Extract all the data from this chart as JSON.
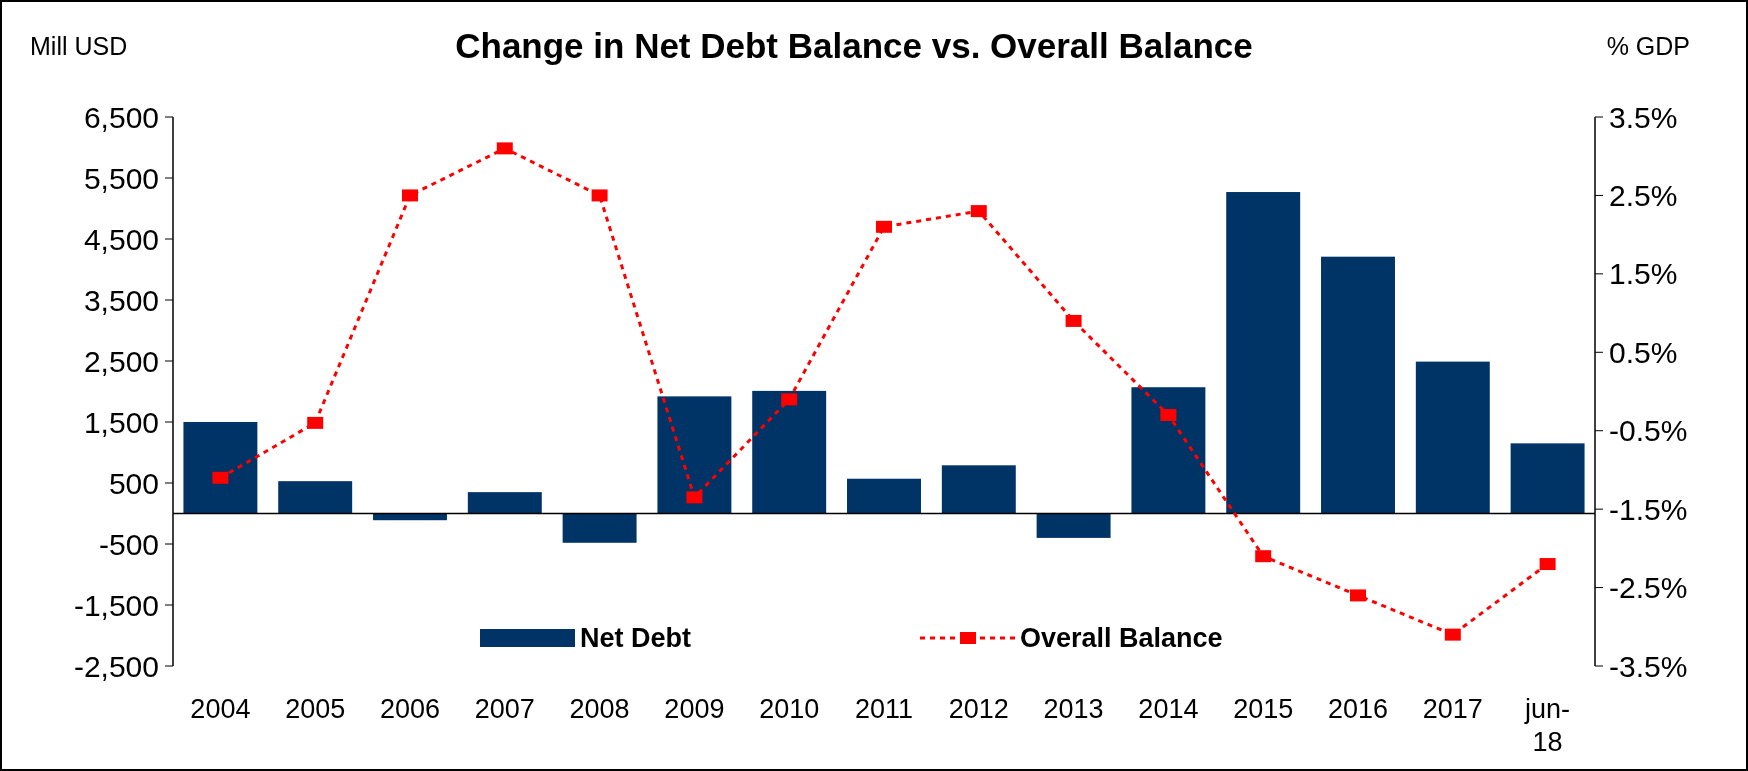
{
  "chart_data": {
    "type": "bar",
    "title": "Change in Net Debt Balance vs. Overall Balance",
    "ylabel": "Mill USD",
    "y2label": "% GDP",
    "categories": [
      "2004",
      "2005",
      "2006",
      "2007",
      "2008",
      "2009",
      "2010",
      "2011",
      "2012",
      "2013",
      "2014",
      "2015",
      "2016",
      "2017",
      "jun-18"
    ],
    "series": [
      {
        "name": "Net Debt",
        "color": "#003366",
        "values": [
          1500,
          530,
          -110,
          350,
          -480,
          1920,
          2010,
          570,
          790,
          -400,
          2070,
          5270,
          4210,
          2490,
          1150
        ]
      },
      {
        "name": "Overall Balance",
        "type": "line",
        "axis": "y2",
        "color": "#ff0000",
        "line_style": "dotted",
        "marker": "square",
        "values": [
          -1.1,
          -0.4,
          2.5,
          3.1,
          2.5,
          -1.35,
          -0.1,
          2.1,
          2.3,
          0.9,
          -0.3,
          -2.1,
          -2.6,
          -3.1,
          -2.2
        ]
      }
    ],
    "ylim": [
      -2500,
      6500
    ],
    "yticks": [
      {
        "value": 6500,
        "label": "6,500"
      },
      {
        "value": 5500,
        "label": "5,500"
      },
      {
        "value": 4500,
        "label": "4,500"
      },
      {
        "value": 3500,
        "label": "3,500"
      },
      {
        "value": 2500,
        "label": "2,500"
      },
      {
        "value": 1500,
        "label": "1,500"
      },
      500,
      -500,
      {
        "value": -1500,
        "label": "-1,500"
      },
      {
        "value": -2500,
        "label": "-2,500"
      }
    ],
    "y2lim": [
      -3.5,
      3.5
    ],
    "y2ticks": [
      {
        "value": 3.5,
        "label": "3.5%"
      },
      {
        "value": 2.5,
        "label": "2.5%"
      },
      {
        "value": 1.5,
        "label": "1.5%"
      },
      {
        "value": 0.5,
        "label": "0.5%"
      },
      {
        "value": -0.5,
        "label": "-0.5%"
      },
      {
        "value": -1.5,
        "label": "-1.5%"
      },
      {
        "value": -2.5,
        "label": "-2.5%"
      },
      {
        "value": -3.5,
        "label": "-3.5%"
      }
    ],
    "grid": false,
    "legend": "bottom"
  }
}
